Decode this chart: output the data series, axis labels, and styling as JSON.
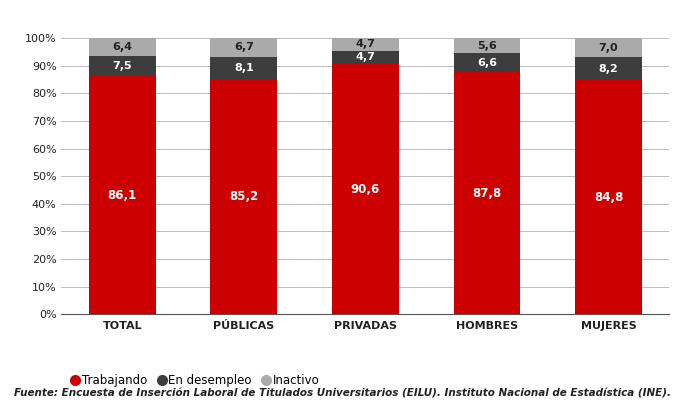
{
  "categories": [
    "TOTAL",
    "PÚBLICAS",
    "PRIVADAS",
    "HOMBRES",
    "MUJERES"
  ],
  "trabajando": [
    86.1,
    85.2,
    90.6,
    87.8,
    84.8
  ],
  "en_desempleo": [
    7.5,
    8.1,
    4.7,
    6.6,
    8.2
  ],
  "inactivo": [
    6.4,
    6.7,
    4.7,
    5.6,
    7.0
  ],
  "color_trabajando": "#cc0000",
  "color_desempleo": "#3d3d3d",
  "color_inactivo": "#aaaaaa",
  "legend_labels": [
    "Trabajando",
    "En desempleo",
    "Inactivo"
  ],
  "yticks": [
    0,
    10,
    20,
    30,
    40,
    50,
    60,
    70,
    80,
    90,
    100
  ],
  "ytick_labels": [
    "0%",
    "10%",
    "20%",
    "30%",
    "40%",
    "50%",
    "60%",
    "70%",
    "80%",
    "90%",
    "100%"
  ],
  "footer": "Fuente: Encuesta de Inserción Laboral de Titulados Universitarios (EILU). Instituto Nacional de Estadística (INE).",
  "bar_width": 0.55
}
